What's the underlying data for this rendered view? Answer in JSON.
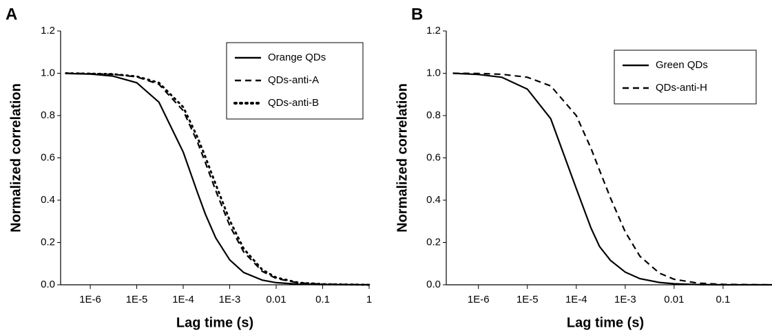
{
  "chart_data": [
    {
      "type": "line",
      "panel_label": "A",
      "x_label": "Lag time (s)",
      "y_label": "Normalized correlation",
      "log_x": true,
      "legend": "top-right",
      "xlim": [
        2.3e-07,
        1
      ],
      "ylim": [
        0,
        1.2
      ],
      "xticks": [
        {
          "value": 1e-06,
          "label": "1E-6"
        },
        {
          "value": 1e-05,
          "label": "1E-5"
        },
        {
          "value": 0.0001,
          "label": "1E-4"
        },
        {
          "value": 0.001,
          "label": "1E-3"
        },
        0.01,
        0.1,
        1
      ],
      "yticks": [
        {
          "value": 0,
          "label": "0.0"
        },
        0.2,
        0.4,
        0.6,
        0.8,
        {
          "value": 1,
          "label": "1.0"
        },
        1.2
      ],
      "x": [
        3e-07,
        1e-06,
        3e-06,
        1e-05,
        3e-05,
        0.0001,
        0.0002,
        0.0003,
        0.0005,
        0.001,
        0.002,
        0.005,
        0.01,
        0.03,
        0.1,
        1
      ],
      "series": [
        {
          "name": "Orange QDs",
          "color": "#000000",
          "style": "solid",
          "values": [
            0.999,
            0.996,
            0.987,
            0.955,
            0.863,
            0.627,
            0.439,
            0.334,
            0.222,
            0.118,
            0.058,
            0.022,
            0.01,
            0.003,
            0.001,
            0
          ]
        },
        {
          "name": "QDs-anti-A",
          "color": "#000000",
          "style": "dashed",
          "values": [
            1,
            0.998,
            0.995,
            0.983,
            0.948,
            0.823,
            0.677,
            0.578,
            0.446,
            0.28,
            0.155,
            0.064,
            0.03,
            0.009,
            0.003,
            0
          ]
        },
        {
          "name": "QDs-anti-B",
          "color": "#000000",
          "style": "dotted",
          "values": [
            1,
            0.998,
            0.996,
            0.985,
            0.955,
            0.84,
            0.7,
            0.605,
            0.475,
            0.305,
            0.17,
            0.072,
            0.034,
            0.01,
            0.003,
            0
          ]
        }
      ]
    },
    {
      "type": "line",
      "panel_label": "B",
      "x_label": "Lag time (s)",
      "y_label": "Normalized correlation",
      "log_x": true,
      "legend": "top-right",
      "xlim": [
        2.2e-07,
        1
      ],
      "ylim": [
        0,
        1.2
      ],
      "xticks": [
        {
          "value": 1e-06,
          "label": "1E-6"
        },
        {
          "value": 1e-05,
          "label": "1E-5"
        },
        {
          "value": 0.0001,
          "label": "1E-4"
        },
        {
          "value": 0.001,
          "label": "1E-3"
        },
        0.01,
        0.1
      ],
      "yticks": [
        {
          "value": 0,
          "label": "0.0"
        },
        0.2,
        0.4,
        0.6,
        0.8,
        {
          "value": 1,
          "label": "1.0"
        },
        1.2
      ],
      "x": [
        3e-07,
        1e-06,
        3e-06,
        1e-05,
        3e-05,
        0.0001,
        0.0002,
        0.0003,
        0.0005,
        0.001,
        0.002,
        0.005,
        0.01,
        0.03,
        0.1,
        1
      ],
      "series": [
        {
          "name": "Green QDs",
          "color": "#000000",
          "style": "solid",
          "values": [
            1,
            0.994,
            0.981,
            0.925,
            0.785,
            0.455,
            0.268,
            0.18,
            0.115,
            0.06,
            0.029,
            0.011,
            0.005,
            0.001,
            0,
            0
          ]
        },
        {
          "name": "QDs-anti-H",
          "color": "#000000",
          "style": "dashed",
          "values": [
            1,
            0.999,
            0.995,
            0.981,
            0.94,
            0.8,
            0.645,
            0.54,
            0.41,
            0.25,
            0.135,
            0.055,
            0.026,
            0.008,
            0.002,
            0
          ]
        }
      ]
    }
  ]
}
